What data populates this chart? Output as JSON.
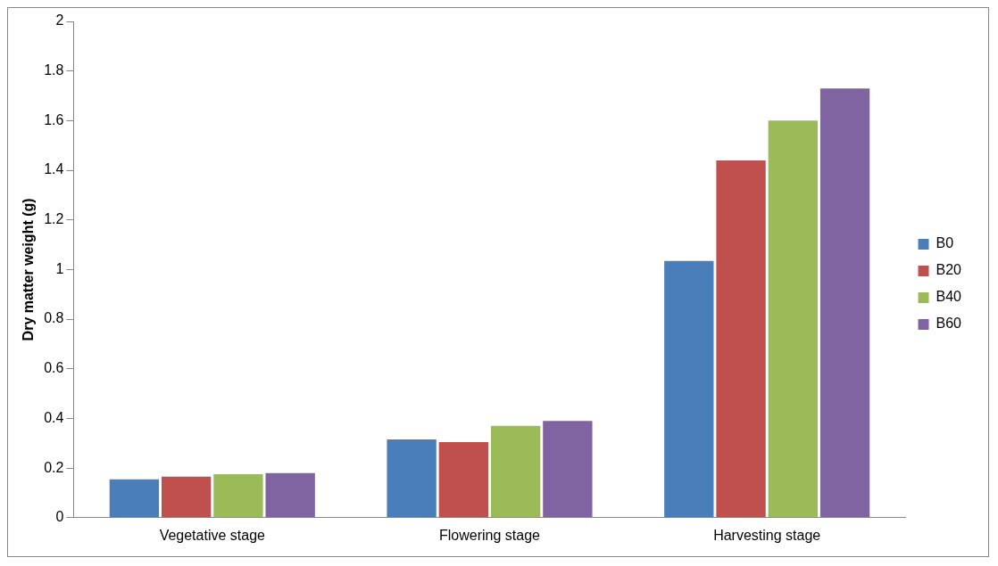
{
  "chart_data": {
    "type": "bar",
    "ylabel": "Dry matter weight (g)",
    "categories": [
      "Vegetative stage",
      "Flowering stage",
      "Harvesting stage"
    ],
    "series": [
      {
        "name": "B0",
        "color": "#4a7ebb",
        "values": [
          0.155,
          0.315,
          1.035
        ]
      },
      {
        "name": "B20",
        "color": "#c0504d",
        "values": [
          0.165,
          0.305,
          1.44
        ]
      },
      {
        "name": "B40",
        "color": "#9bbb59",
        "values": [
          0.175,
          0.37,
          1.6
        ]
      },
      {
        "name": "B60",
        "color": "#8064a2",
        "values": [
          0.18,
          0.39,
          1.73
        ]
      }
    ],
    "ylim": [
      0,
      2
    ],
    "yticks": [
      0,
      0.2,
      0.4,
      0.6,
      0.8,
      1,
      1.2,
      1.4,
      1.6,
      1.8,
      2
    ],
    "grid": false,
    "legend": "right"
  }
}
